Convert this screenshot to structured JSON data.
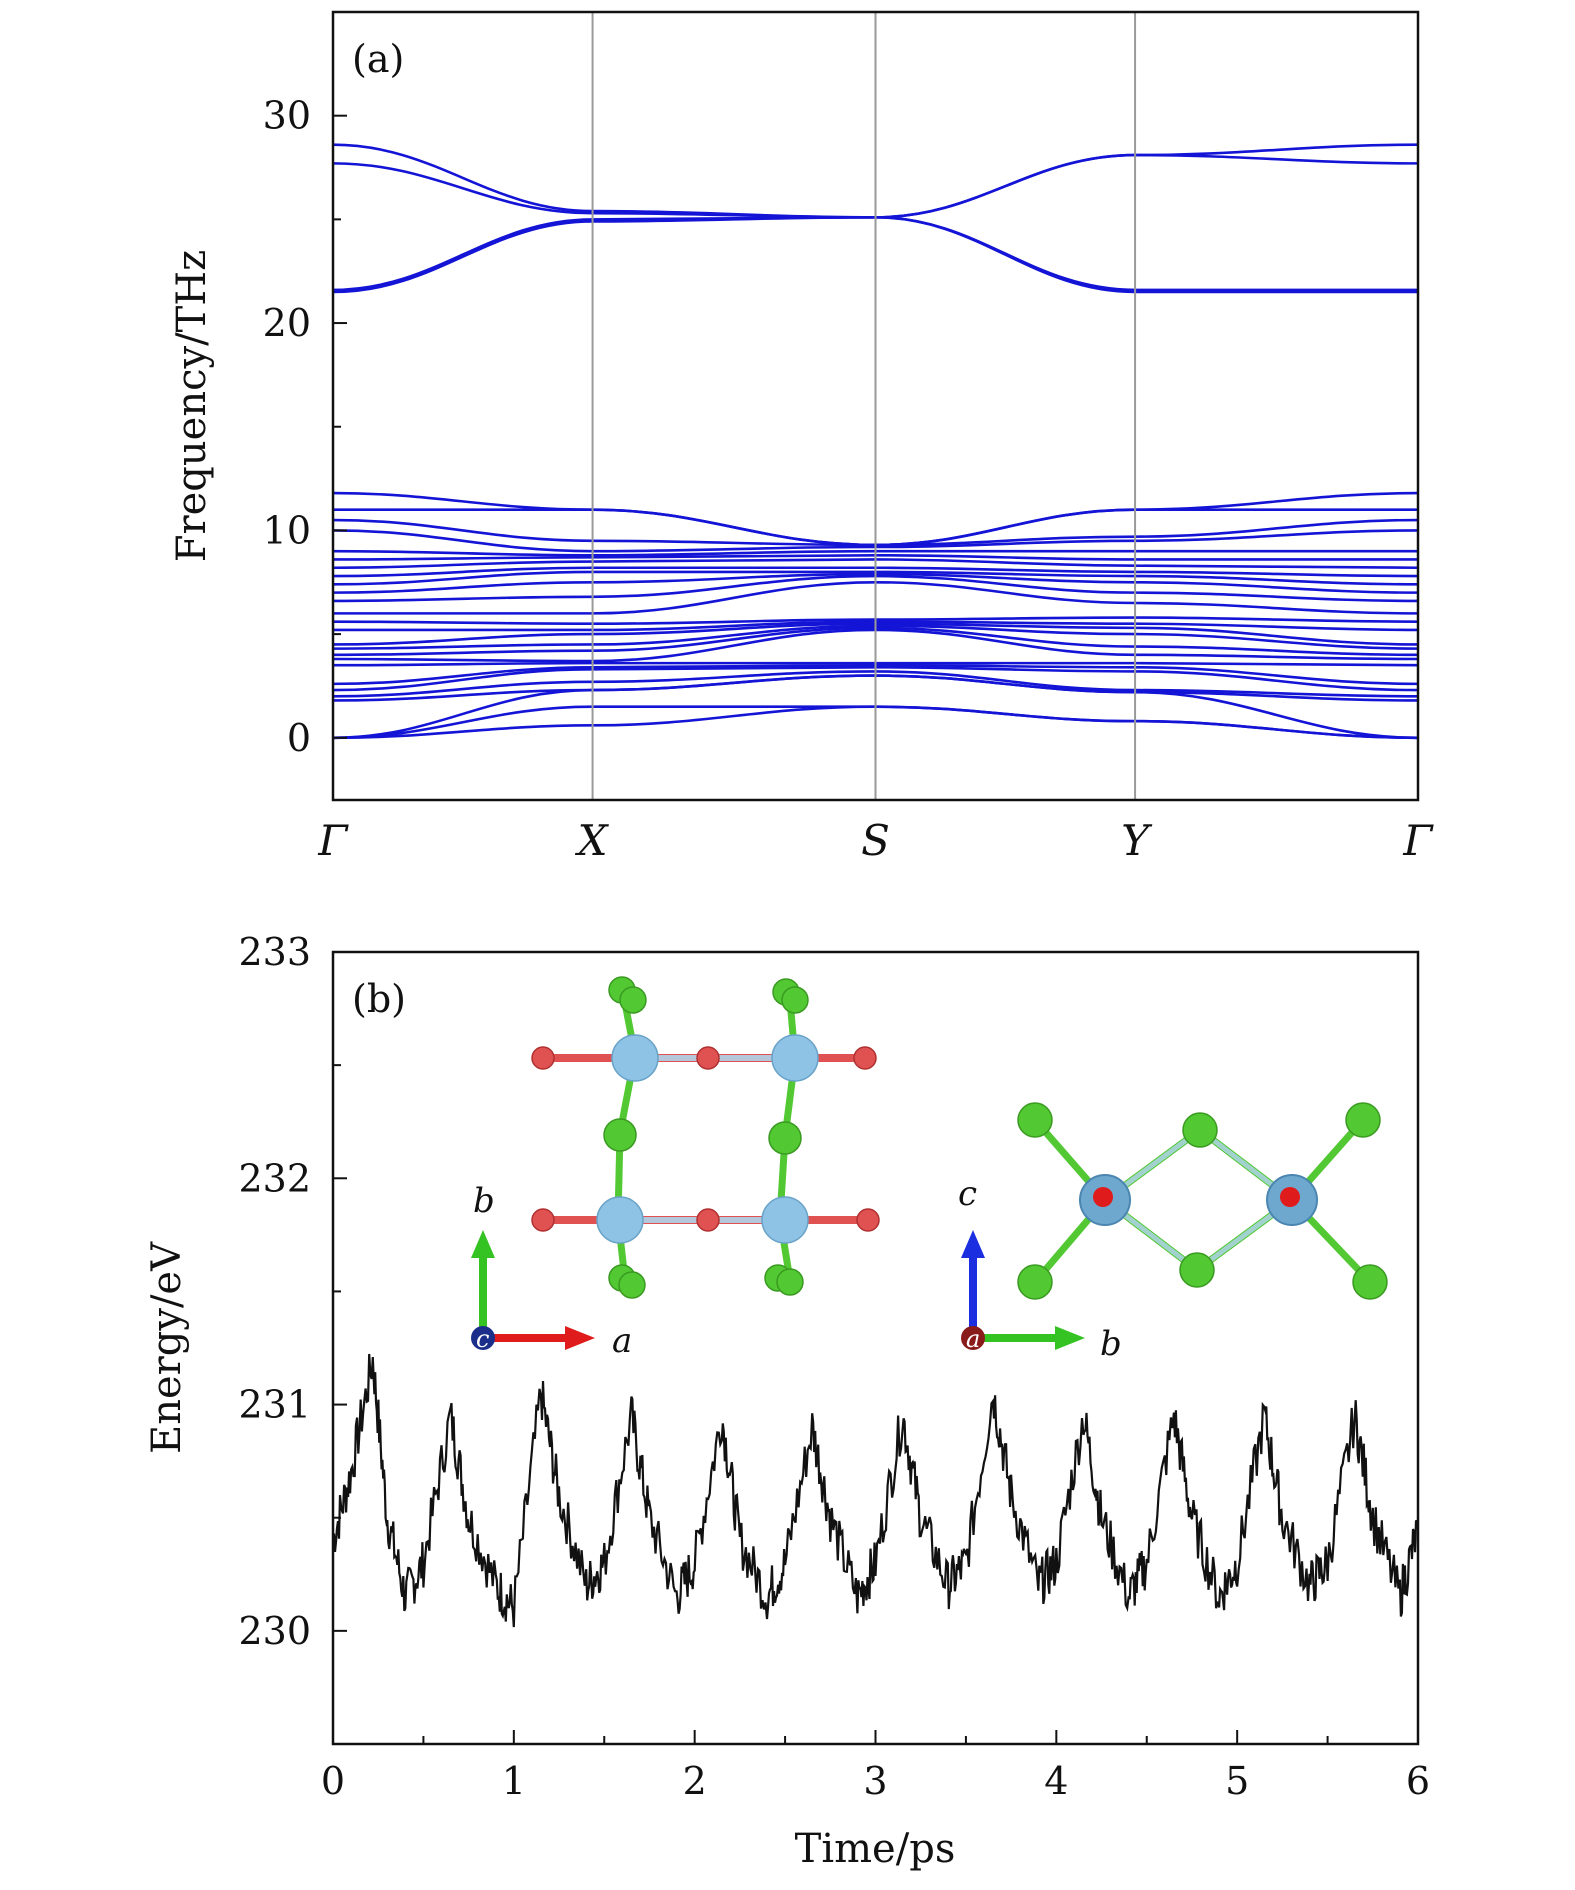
{
  "chart_data": [
    {
      "type": "line",
      "panel_label": "(a)",
      "ylabel": "Frequency/THz",
      "ylim": [
        -3,
        35
      ],
      "y_ticks": [
        0,
        10,
        20,
        30
      ],
      "x_kpoints": [
        "Γ",
        "X",
        "S",
        "Y",
        "Γ"
      ],
      "k_positions": [
        0,
        1,
        2.09,
        3.09,
        4.18
      ],
      "line_color": "#1414d6",
      "separator_color": "#999999",
      "bands": [
        {
          "g": 0,
          "x": 0.6,
          "s": 1.5,
          "y": 0.8,
          "g2": 0
        },
        {
          "g": 0,
          "x": 1.5,
          "s": 1.5,
          "y": 0.8,
          "g2": 0
        },
        {
          "g": 0,
          "x": 2.3,
          "s": 3.0,
          "y": 2.2,
          "g2": 0
        },
        {
          "g": 1.8,
          "x": 2.3,
          "s": 3.0,
          "y": 2.2,
          "g2": 1.8
        },
        {
          "g": 2.0,
          "x": 2.7,
          "s": 3.2,
          "y": 2.3,
          "g2": 2.0
        },
        {
          "g": 2.3,
          "x": 3.3,
          "s": 3.4,
          "y": 3.2,
          "g2": 2.3
        },
        {
          "g": 2.6,
          "x": 3.4,
          "s": 3.5,
          "y": 3.4,
          "g2": 2.6
        },
        {
          "g": 3.5,
          "x": 3.6,
          "s": 3.6,
          "y": 3.6,
          "g2": 3.5
        },
        {
          "g": 3.8,
          "x": 3.7,
          "s": 5.2,
          "y": 4.0,
          "g2": 3.8
        },
        {
          "g": 4.0,
          "x": 4.2,
          "s": 5.3,
          "y": 4.4,
          "g2": 4.0
        },
        {
          "g": 4.3,
          "x": 4.5,
          "s": 5.4,
          "y": 5.0,
          "g2": 4.3
        },
        {
          "g": 4.5,
          "x": 5.0,
          "s": 5.5,
          "y": 5.3,
          "g2": 4.5
        },
        {
          "g": 5.2,
          "x": 5.2,
          "s": 5.6,
          "y": 5.5,
          "g2": 5.2
        },
        {
          "g": 5.6,
          "x": 5.5,
          "s": 5.7,
          "y": 5.8,
          "g2": 5.6
        },
        {
          "g": 6.0,
          "x": 6.0,
          "s": 7.5,
          "y": 6.5,
          "g2": 6.0
        },
        {
          "g": 6.6,
          "x": 6.8,
          "s": 7.8,
          "y": 7.0,
          "g2": 6.6
        },
        {
          "g": 7.0,
          "x": 7.5,
          "s": 7.9,
          "y": 7.5,
          "g2": 7.0
        },
        {
          "g": 7.4,
          "x": 8.0,
          "s": 8.0,
          "y": 7.8,
          "g2": 7.4
        },
        {
          "g": 7.8,
          "x": 8.2,
          "s": 8.2,
          "y": 8.0,
          "g2": 7.8
        },
        {
          "g": 8.2,
          "x": 8.5,
          "s": 8.6,
          "y": 8.3,
          "g2": 8.2
        },
        {
          "g": 8.6,
          "x": 8.7,
          "s": 8.8,
          "y": 8.6,
          "g2": 8.6
        },
        {
          "g": 9.0,
          "x": 8.8,
          "s": 9.0,
          "y": 9.0,
          "g2": 9.0
        },
        {
          "g": 10.0,
          "x": 9.0,
          "s": 9.2,
          "y": 9.5,
          "g2": 10.0
        },
        {
          "g": 10.5,
          "x": 9.5,
          "s": 9.3,
          "y": 9.7,
          "g2": 10.5
        },
        {
          "g": 11.0,
          "x": 11.0,
          "s": 9.3,
          "y": 11.0,
          "g2": 11.0
        },
        {
          "g": 11.8,
          "x": 11.0,
          "s": 9.3,
          "y": 11.0,
          "g2": 11.8
        },
        {
          "g": 21.5,
          "x": 24.9,
          "s": 25.1,
          "y": 21.5,
          "g2": 21.5
        },
        {
          "g": 21.6,
          "x": 25.0,
          "s": 25.1,
          "y": 21.6,
          "g2": 21.6
        },
        {
          "g": 27.7,
          "x": 25.3,
          "s": 25.1,
          "y": 28.1,
          "g2": 27.7
        },
        {
          "g": 28.6,
          "x": 25.4,
          "s": 25.1,
          "y": 28.1,
          "g2": 28.6
        }
      ]
    },
    {
      "type": "line",
      "panel_label": "(b)",
      "xlabel": "Time/ps",
      "ylabel": "Energy/eV",
      "xlim": [
        0,
        6
      ],
      "ylim": [
        229.5,
        233
      ],
      "x_ticks": [
        0,
        1,
        2,
        3,
        4,
        5,
        6
      ],
      "y_ticks": [
        230,
        231,
        232,
        233
      ],
      "line_color": "#111111",
      "series": [
        {
          "x": [
            0,
            0.1,
            0.22,
            0.3,
            0.4,
            0.5,
            0.65,
            0.75,
            0.9,
            1.0,
            1.15,
            1.25,
            1.4,
            1.5,
            1.65,
            1.75,
            1.9,
            2.0,
            2.15,
            2.25,
            2.4,
            2.5,
            2.65,
            2.75,
            2.9,
            3.0,
            3.15,
            3.25,
            3.4,
            3.5,
            3.65,
            3.75,
            3.9,
            4.0,
            4.15,
            4.25,
            4.4,
            4.5,
            4.65,
            4.75,
            4.9,
            5.0,
            5.15,
            5.25,
            5.4,
            5.5,
            5.65,
            5.75,
            5.9,
            6.0
          ],
          "y": [
            230.4,
            230.7,
            231.2,
            230.5,
            230.15,
            230.3,
            230.95,
            230.5,
            230.2,
            230.1,
            231.05,
            230.6,
            230.2,
            230.3,
            230.95,
            230.5,
            230.15,
            230.3,
            230.95,
            230.4,
            230.15,
            230.3,
            230.9,
            230.5,
            230.15,
            230.3,
            230.95,
            230.5,
            230.2,
            230.3,
            231.05,
            230.6,
            230.2,
            230.3,
            230.95,
            230.5,
            230.15,
            230.3,
            230.95,
            230.5,
            230.15,
            230.3,
            230.95,
            230.5,
            230.2,
            230.3,
            230.95,
            230.5,
            230.15,
            230.45
          ]
        }
      ]
    }
  ],
  "inset": {
    "left_axes": {
      "vertical": "b",
      "horizontal": "a",
      "origin": "c"
    },
    "right_axes": {
      "vertical": "c",
      "horizontal": "b",
      "origin": "a"
    },
    "colors": {
      "metal_atom": "#8ec3e6",
      "red_atom": "#e05252",
      "green_atom": "#52c832",
      "bond": "#b0d4ea",
      "arrow_red": "#e01b1b",
      "arrow_green": "#34c322",
      "arrow_blue": "#1b2ee0"
    }
  }
}
